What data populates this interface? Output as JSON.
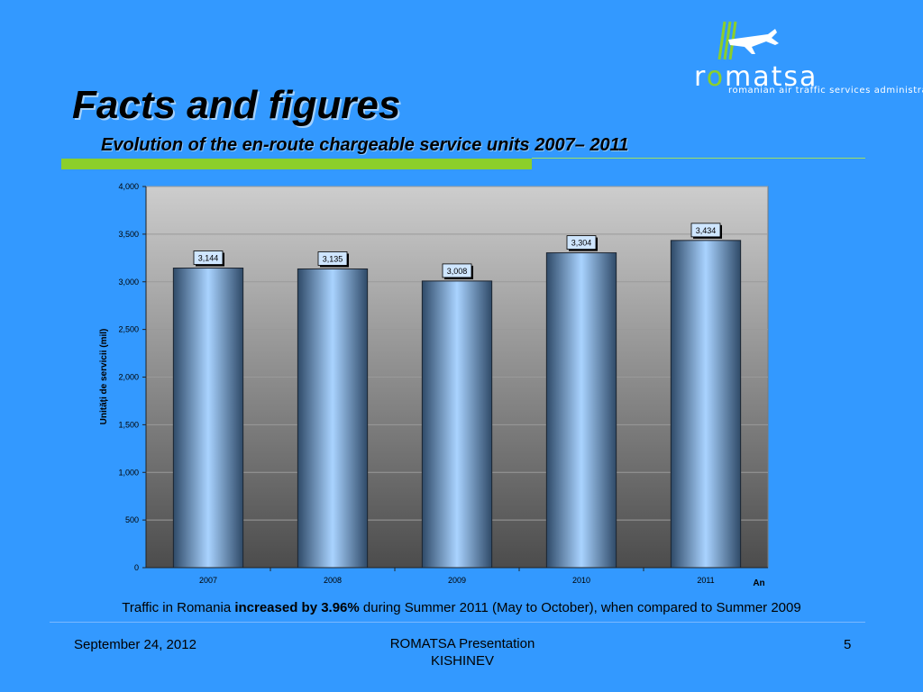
{
  "logo": {
    "brand_before": "r",
    "brand_o": "o",
    "brand_after": "matsa",
    "tagline": "romanian air traffic services administration"
  },
  "slide": {
    "title": "Facts and figures",
    "subtitle": "Evolution of the en-route chargeable service units 2007– 2011"
  },
  "caption": {
    "before": "Traffic in Romania ",
    "bold": "increased by 3.96%",
    "after": " during Summer 2011 (May to October), when compared to Summer 2009"
  },
  "footer": {
    "date": "September 24, 2012",
    "line1": "ROMATSA Presentation",
    "line2": "KISHINEV",
    "page": "5"
  },
  "colors": {
    "background": "#3399ff",
    "accent_green": "#8ccf2a"
  },
  "chart_data": {
    "type": "bar",
    "categories": [
      "2007",
      "2008",
      "2009",
      "2010",
      "2011"
    ],
    "values": [
      3144,
      3135,
      3008,
      3304,
      3434
    ],
    "value_labels": [
      "3,144",
      "3,135",
      "3,008",
      "3,304",
      "3,434"
    ],
    "ylabel": "Unități de servicii (mil)",
    "xlabel": "An",
    "ylim": [
      0,
      4000
    ],
    "yticks": [
      0,
      500,
      1000,
      1500,
      2000,
      2500,
      3000,
      3500,
      4000
    ],
    "ytick_labels": [
      "0",
      "500",
      "1,000",
      "1,500",
      "2,000",
      "2,500",
      "3,000",
      "3,500",
      "4,000"
    ],
    "grid": true,
    "legend": "none"
  }
}
